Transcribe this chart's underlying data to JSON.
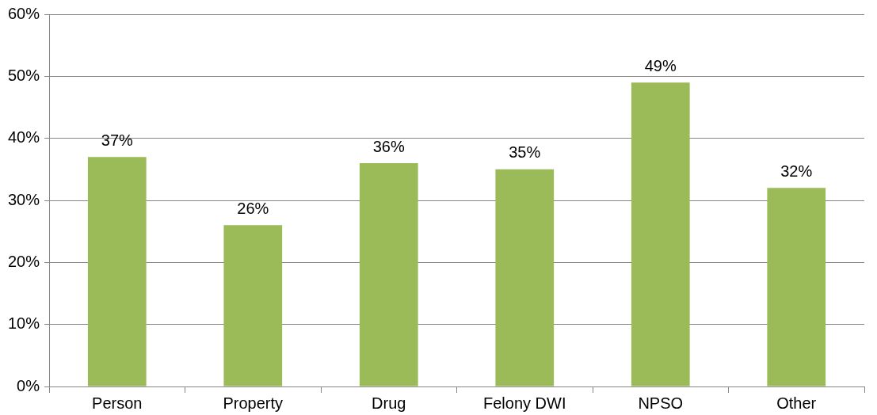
{
  "chart_data": {
    "type": "bar",
    "categories": [
      "Person",
      "Property",
      "Drug",
      "Felony DWI",
      "NPSO",
      "Other"
    ],
    "values": [
      37,
      26,
      36,
      35,
      49,
      32
    ],
    "value_labels": [
      "37%",
      "26%",
      "36%",
      "35%",
      "49%",
      "32%"
    ],
    "color": "#9bbb59",
    "ylim": [
      0,
      60
    ],
    "yticks": [
      {
        "value": 0,
        "label": "0%"
      },
      {
        "value": 10,
        "label": "10%"
      },
      {
        "value": 20,
        "label": "20%"
      },
      {
        "value": 30,
        "label": "30%"
      },
      {
        "value": 40,
        "label": "40%"
      },
      {
        "value": 50,
        "label": "50%"
      },
      {
        "value": 60,
        "label": "60%"
      }
    ],
    "grid": "y",
    "legend": false
  }
}
